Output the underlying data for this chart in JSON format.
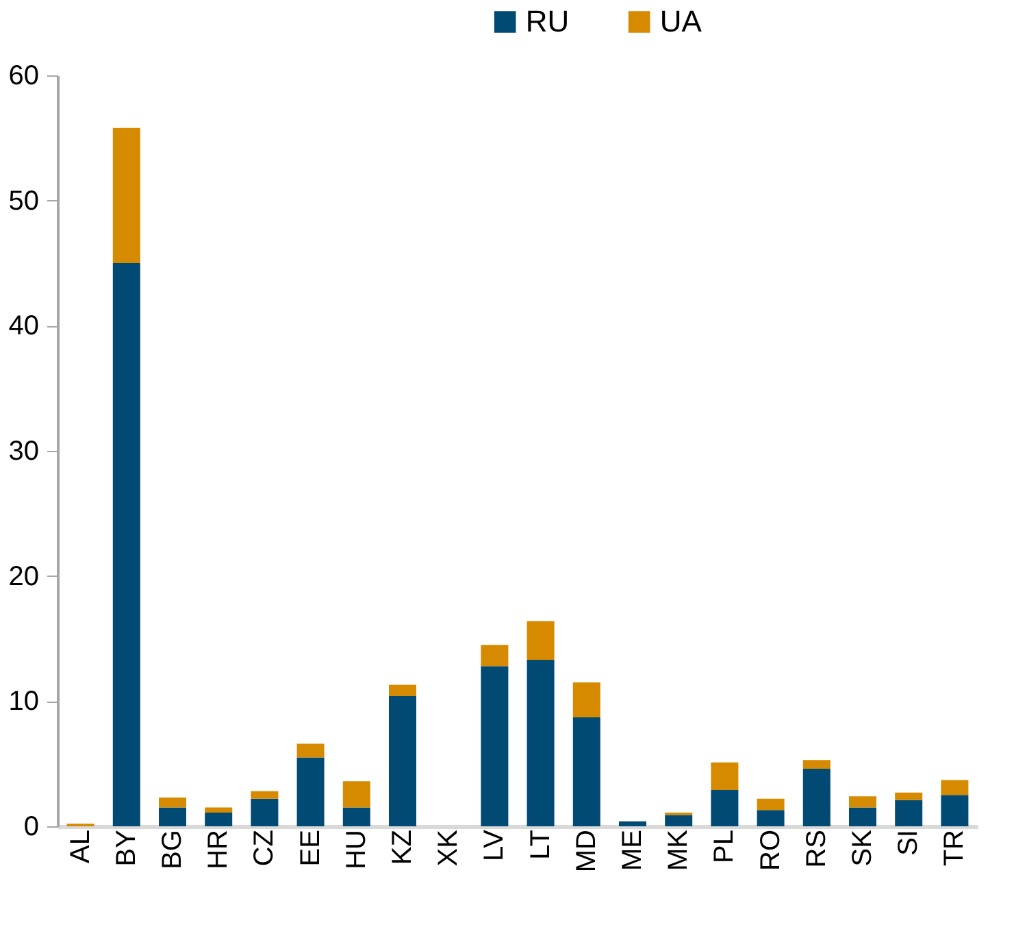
{
  "chart_data": {
    "type": "bar",
    "stacked": true,
    "categories": [
      "AL",
      "BY",
      "BG",
      "HR",
      "CZ",
      "EE",
      "HU",
      "KZ",
      "XK",
      "LV",
      "LT",
      "MD",
      "ME",
      "MK",
      "PL",
      "RO",
      "RS",
      "SK",
      "SI",
      "TR"
    ],
    "series": [
      {
        "name": "RU",
        "color": "#004a74",
        "values": [
          0,
          45.0,
          1.5,
          1.1,
          2.2,
          5.5,
          1.5,
          10.4,
          0,
          12.8,
          13.3,
          8.7,
          0.4,
          0.9,
          2.9,
          1.3,
          4.6,
          1.5,
          2.1,
          2.5
        ]
      },
      {
        "name": "UA",
        "color": "#d68a00",
        "values": [
          0.2,
          10.8,
          0.8,
          0.4,
          0.6,
          1.1,
          2.1,
          0.9,
          0,
          1.7,
          3.1,
          2.8,
          0,
          0.2,
          2.2,
          0.9,
          0.7,
          0.9,
          0.6,
          1.2
        ]
      }
    ],
    "ylim": [
      0,
      60
    ],
    "yticks": [
      0,
      10,
      20,
      30,
      40,
      50,
      60
    ],
    "grid": false,
    "legend": "top right"
  }
}
